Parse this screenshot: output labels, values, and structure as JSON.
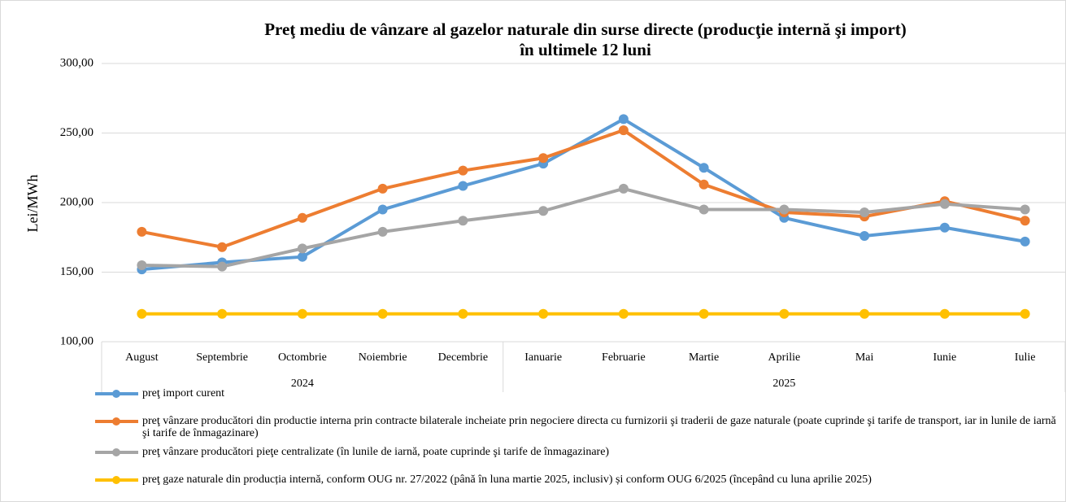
{
  "chart_data": {
    "type": "line",
    "title": "Preţ  mediu de vânzare al gazelor naturale din surse directe (producţie internă şi import)",
    "subtitle": "în ultimele 12 luni",
    "y_label": "Lei/MWh",
    "categories": [
      "August",
      "Septembrie",
      "Octombrie",
      "Noiembrie",
      "Decembrie",
      "Ianuarie",
      "Februarie",
      "Martie",
      "Aprilie",
      "Mai",
      "Iunie",
      "Iulie"
    ],
    "x_groups": [
      {
        "label": "2024",
        "count": 5
      },
      {
        "label": "2025",
        "count": 7
      }
    ],
    "series": [
      {
        "name": "preţ import curent",
        "color": "#5b9bd5",
        "values": [
          152,
          157,
          161,
          195,
          212,
          228,
          260,
          225,
          189,
          176,
          182,
          172
        ]
      },
      {
        "name": "preţ vânzare producători din productie interna prin contracte bilaterale incheiate  prin negociere directa cu furnizorii şi traderii de gaze naturale (poate cuprinde şi tarife de transport, iar in lunile de iarnă şi tarife de înmagazinare)",
        "color": "#ed7d31",
        "values": [
          179,
          168,
          189,
          210,
          223,
          232,
          252,
          213,
          193,
          190,
          201,
          187
        ]
      },
      {
        "name": "preţ vânzare producători pieţe centralizate (în lunile de iarnă, poate cuprinde şi tarife de înmagazinare)",
        "color": "#a5a5a5",
        "values": [
          155,
          154,
          167,
          179,
          187,
          194,
          210,
          195,
          195,
          193,
          199,
          195
        ]
      },
      {
        "name": "preţ gaze naturale din producția internă, conform OUG nr. 27/2022 (până în luna martie 2025, inclusiv) și conform OUG 6/2025 (începând cu luna aprilie 2025)",
        "color": "#ffc000",
        "values": [
          120,
          120,
          120,
          120,
          120,
          120,
          120,
          120,
          120,
          120,
          120,
          120
        ]
      }
    ],
    "ylim": [
      100,
      300
    ],
    "yticks": [
      {
        "value": 100,
        "label": "100,00"
      },
      {
        "value": 150,
        "label": "150,00"
      },
      {
        "value": 200,
        "label": "200,00"
      },
      {
        "value": 250,
        "label": "250,00"
      },
      {
        "value": 300,
        "label": "300,00"
      }
    ],
    "grid": true,
    "legend": "bottom"
  }
}
